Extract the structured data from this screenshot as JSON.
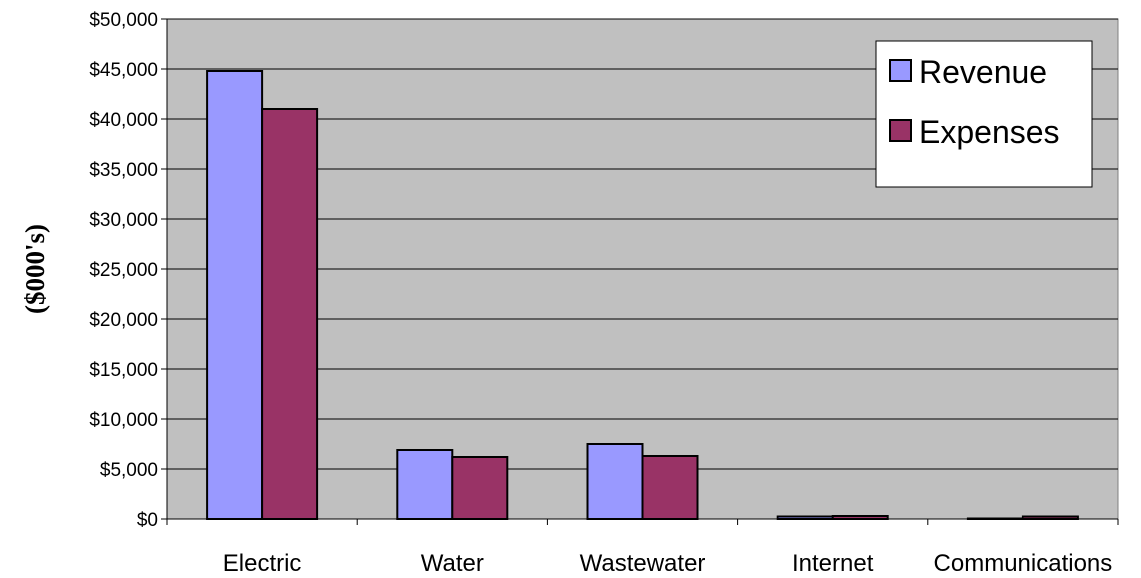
{
  "chart_data": {
    "type": "bar",
    "title": "",
    "xlabel": "",
    "ylabel": "($000's)",
    "ylim": [
      0,
      50000
    ],
    "yticks": [
      0,
      5000,
      10000,
      15000,
      20000,
      25000,
      30000,
      35000,
      40000,
      45000,
      50000
    ],
    "ytick_labels": [
      "$0",
      "$5,000",
      "$10,000",
      "$15,000",
      "$20,000",
      "$25,000",
      "$30,000",
      "$35,000",
      "$40,000",
      "$45,000",
      "$50,000"
    ],
    "categories": [
      "Electric",
      "Water",
      "Wastewater",
      "Internet",
      "Communications"
    ],
    "series": [
      {
        "name": "Revenue",
        "color": "#9999ff",
        "values": [
          44800,
          6900,
          7500,
          250,
          50
        ]
      },
      {
        "name": "Expenses",
        "color": "#993366",
        "values": [
          41000,
          6200,
          6300,
          300,
          250
        ]
      }
    ],
    "grid": true,
    "plot_background": "#c0c0c0",
    "legend_position": "top-right"
  }
}
